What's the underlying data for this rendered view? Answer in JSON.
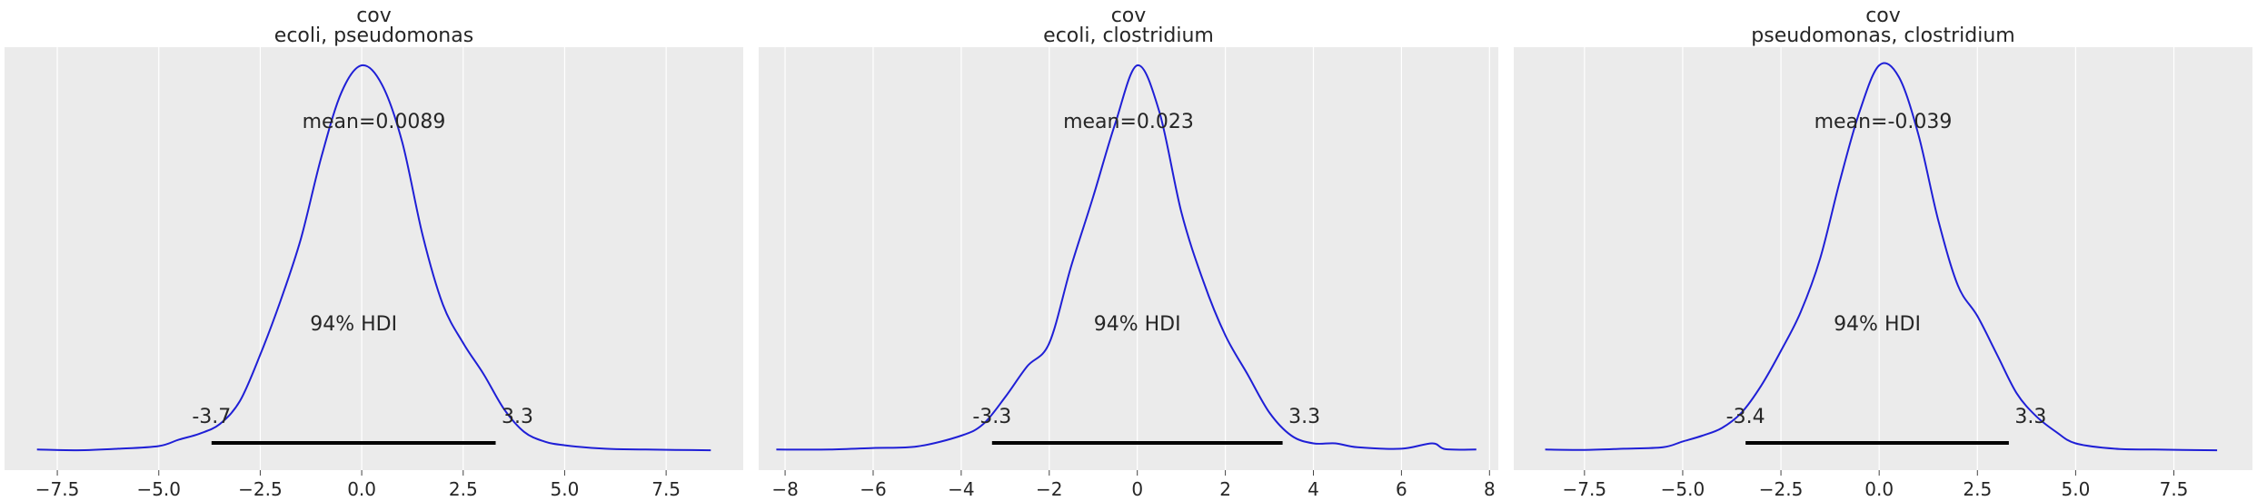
{
  "colors": {
    "curve": "#1f1fd6",
    "hdi_bar": "#000000",
    "panel_bg": "#ebebeb",
    "grid": "#ffffff",
    "text": "#262626"
  },
  "chart_data": [
    {
      "type": "line",
      "title": [
        "cov",
        "ecoli, pseudomonas"
      ],
      "xlim": [
        -8.8,
        9.4
      ],
      "ylim": [
        0,
        1.0
      ],
      "xticks": [
        -7.5,
        -5.0,
        -2.5,
        0.0,
        2.5,
        5.0,
        7.5
      ],
      "xtick_labels": [
        "−7.5",
        "−5.0",
        "−2.5",
        "0.0",
        "2.5",
        "5.0",
        "7.5"
      ],
      "grid": true,
      "mean_label": "mean=0.0089",
      "hdi_label": "94% HDI",
      "hdi": [
        -3.7,
        3.3
      ],
      "hdi_low_label": "-3.7",
      "hdi_high_label": "3.3",
      "x": [
        -8.0,
        -7.0,
        -6.0,
        -5.0,
        -4.5,
        -4.0,
        -3.5,
        -3.0,
        -2.5,
        -2.0,
        -1.5,
        -1.0,
        -0.5,
        0.0,
        0.5,
        1.0,
        1.5,
        2.0,
        2.5,
        3.0,
        3.5,
        4.0,
        4.5,
        5.0,
        6.0,
        7.0,
        8.6
      ],
      "y": [
        0.004,
        0.002,
        0.006,
        0.013,
        0.03,
        0.045,
        0.07,
        0.13,
        0.25,
        0.39,
        0.55,
        0.76,
        0.93,
        1.0,
        0.95,
        0.8,
        0.56,
        0.38,
        0.28,
        0.2,
        0.11,
        0.05,
        0.025,
        0.015,
        0.006,
        0.004,
        0.002
      ]
    },
    {
      "type": "line",
      "title": [
        "cov",
        "ecoli, clostridium"
      ],
      "xlim": [
        -8.6,
        8.2
      ],
      "ylim": [
        0,
        1.0
      ],
      "xticks": [
        -8,
        -6,
        -4,
        -2,
        0,
        2,
        4,
        6,
        8
      ],
      "xtick_labels": [
        "−8",
        "−6",
        "−4",
        "−2",
        "0",
        "2",
        "4",
        "6",
        "8"
      ],
      "grid": true,
      "mean_label": "mean=0.023",
      "hdi_label": "94% HDI",
      "hdi": [
        -3.3,
        3.3
      ],
      "hdi_low_label": "-3.3",
      "hdi_high_label": "3.3",
      "x": [
        -8.2,
        -7.0,
        -6.0,
        -5.0,
        -4.0,
        -3.5,
        -3.0,
        -2.5,
        -2.0,
        -1.5,
        -1.0,
        -0.5,
        0.0,
        0.5,
        1.0,
        1.5,
        2.0,
        2.5,
        3.0,
        3.5,
        4.0,
        4.5,
        5.0,
        6.0,
        6.7,
        7.0,
        7.7
      ],
      "y": [
        0.004,
        0.004,
        0.008,
        0.012,
        0.04,
        0.07,
        0.14,
        0.22,
        0.28,
        0.48,
        0.66,
        0.85,
        1.0,
        0.88,
        0.62,
        0.44,
        0.3,
        0.2,
        0.1,
        0.04,
        0.02,
        0.02,
        0.01,
        0.006,
        0.02,
        0.005,
        0.004
      ]
    },
    {
      "type": "line",
      "title": [
        "cov",
        "pseudomonas, clostridium"
      ],
      "xlim": [
        -9.3,
        9.5
      ],
      "ylim": [
        0,
        1.0
      ],
      "xticks": [
        -7.5,
        -5.0,
        -2.5,
        0.0,
        2.5,
        5.0,
        7.5
      ],
      "xtick_labels": [
        "−7.5",
        "−5.0",
        "−2.5",
        "0.0",
        "2.5",
        "5.0",
        "7.5"
      ],
      "grid": true,
      "mean_label": "mean=-0.039",
      "hdi_label": "94% HDI",
      "hdi": [
        -3.4,
        3.3
      ],
      "hdi_low_label": "-3.4",
      "hdi_high_label": "3.3",
      "x": [
        -8.5,
        -7.5,
        -6.5,
        -5.5,
        -5.0,
        -4.5,
        -4.0,
        -3.5,
        -3.0,
        -2.5,
        -2.0,
        -1.5,
        -1.0,
        -0.5,
        0.0,
        0.5,
        1.0,
        1.5,
        2.0,
        2.5,
        3.0,
        3.5,
        4.0,
        4.5,
        5.0,
        6.0,
        7.0,
        8.6
      ],
      "y": [
        0.004,
        0.003,
        0.006,
        0.01,
        0.025,
        0.04,
        0.06,
        0.1,
        0.17,
        0.26,
        0.36,
        0.5,
        0.7,
        0.88,
        1.0,
        0.97,
        0.82,
        0.6,
        0.43,
        0.35,
        0.25,
        0.15,
        0.09,
        0.05,
        0.02,
        0.006,
        0.004,
        0.002
      ]
    }
  ]
}
